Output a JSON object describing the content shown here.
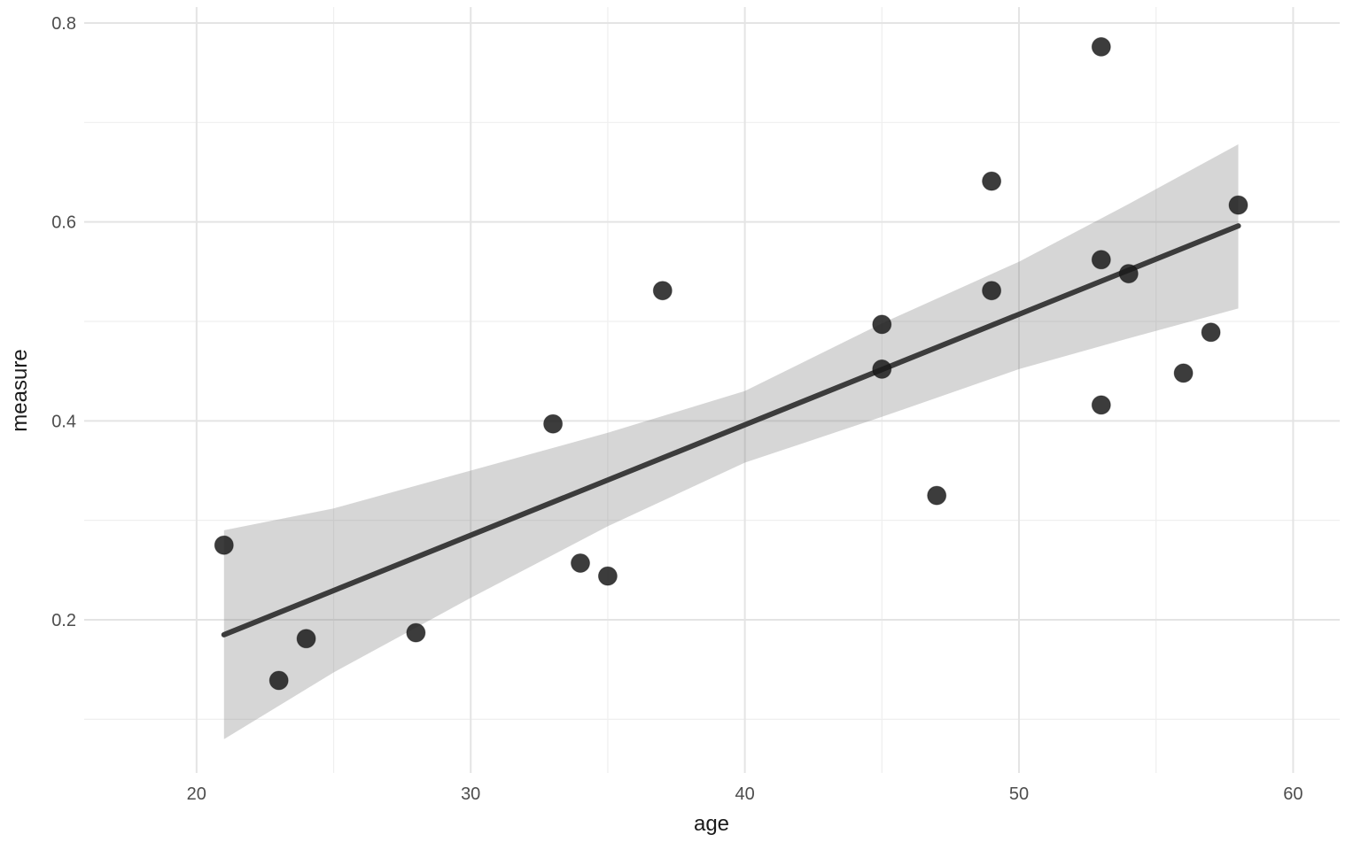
{
  "chart_data": {
    "type": "scatter",
    "title": "",
    "xlabel": "age",
    "ylabel": "measure",
    "x_ticks": [
      20,
      30,
      40,
      50,
      60
    ],
    "x_tick_labels": [
      "20",
      "30",
      "40",
      "50",
      "60"
    ],
    "x_minor_ticks": [
      25,
      35,
      45,
      55
    ],
    "y_ticks": [
      0.2,
      0.4,
      0.6,
      0.8
    ],
    "y_tick_labels": [
      "0.2",
      "0.4",
      "0.6",
      "0.8"
    ],
    "y_minor_ticks": [
      0.1,
      0.3,
      0.5,
      0.7
    ],
    "xlim": [
      15.9,
      61.7
    ],
    "ylim": [
      0.046,
      0.816
    ],
    "grid": "on",
    "legend": "none",
    "points": [
      {
        "age": 21,
        "measure": 0.275
      },
      {
        "age": 23,
        "measure": 0.139
      },
      {
        "age": 24,
        "measure": 0.181
      },
      {
        "age": 28,
        "measure": 0.187
      },
      {
        "age": 33,
        "measure": 0.397
      },
      {
        "age": 34,
        "measure": 0.257
      },
      {
        "age": 35,
        "measure": 0.244
      },
      {
        "age": 37,
        "measure": 0.531
      },
      {
        "age": 45,
        "measure": 0.452
      },
      {
        "age": 45,
        "measure": 0.497
      },
      {
        "age": 47,
        "measure": 0.325
      },
      {
        "age": 49,
        "measure": 0.531
      },
      {
        "age": 49,
        "measure": 0.641
      },
      {
        "age": 53,
        "measure": 0.416
      },
      {
        "age": 53,
        "measure": 0.562
      },
      {
        "age": 53,
        "measure": 0.776
      },
      {
        "age": 54,
        "measure": 0.548
      },
      {
        "age": 56,
        "measure": 0.448
      },
      {
        "age": 57,
        "measure": 0.489
      },
      {
        "age": 58,
        "measure": 0.617
      }
    ],
    "trend_line": {
      "x1": 21,
      "y1": 0.185,
      "x2": 58,
      "y2": 0.596
    },
    "ci_band": {
      "ages": [
        21,
        25,
        30,
        35,
        40,
        45,
        50,
        54,
        58
      ],
      "upper": [
        0.29,
        0.312,
        0.35,
        0.388,
        0.43,
        0.498,
        0.56,
        0.618,
        0.678
      ],
      "lower": [
        0.08,
        0.147,
        0.222,
        0.294,
        0.358,
        0.404,
        0.452,
        0.483,
        0.513
      ]
    },
    "colors": {
      "background": "#ffffff",
      "grid_major": "#e4e4e4",
      "grid_minor": "#efefef",
      "point_fill": "#1a1a1a",
      "point_opacity": 0.85,
      "trend_line": "#3c3c3c",
      "band_fill": "#7f7f7f",
      "band_opacity": 0.32,
      "tick_text": "#4d4d4d",
      "title_text": "#1a1a1a"
    }
  }
}
